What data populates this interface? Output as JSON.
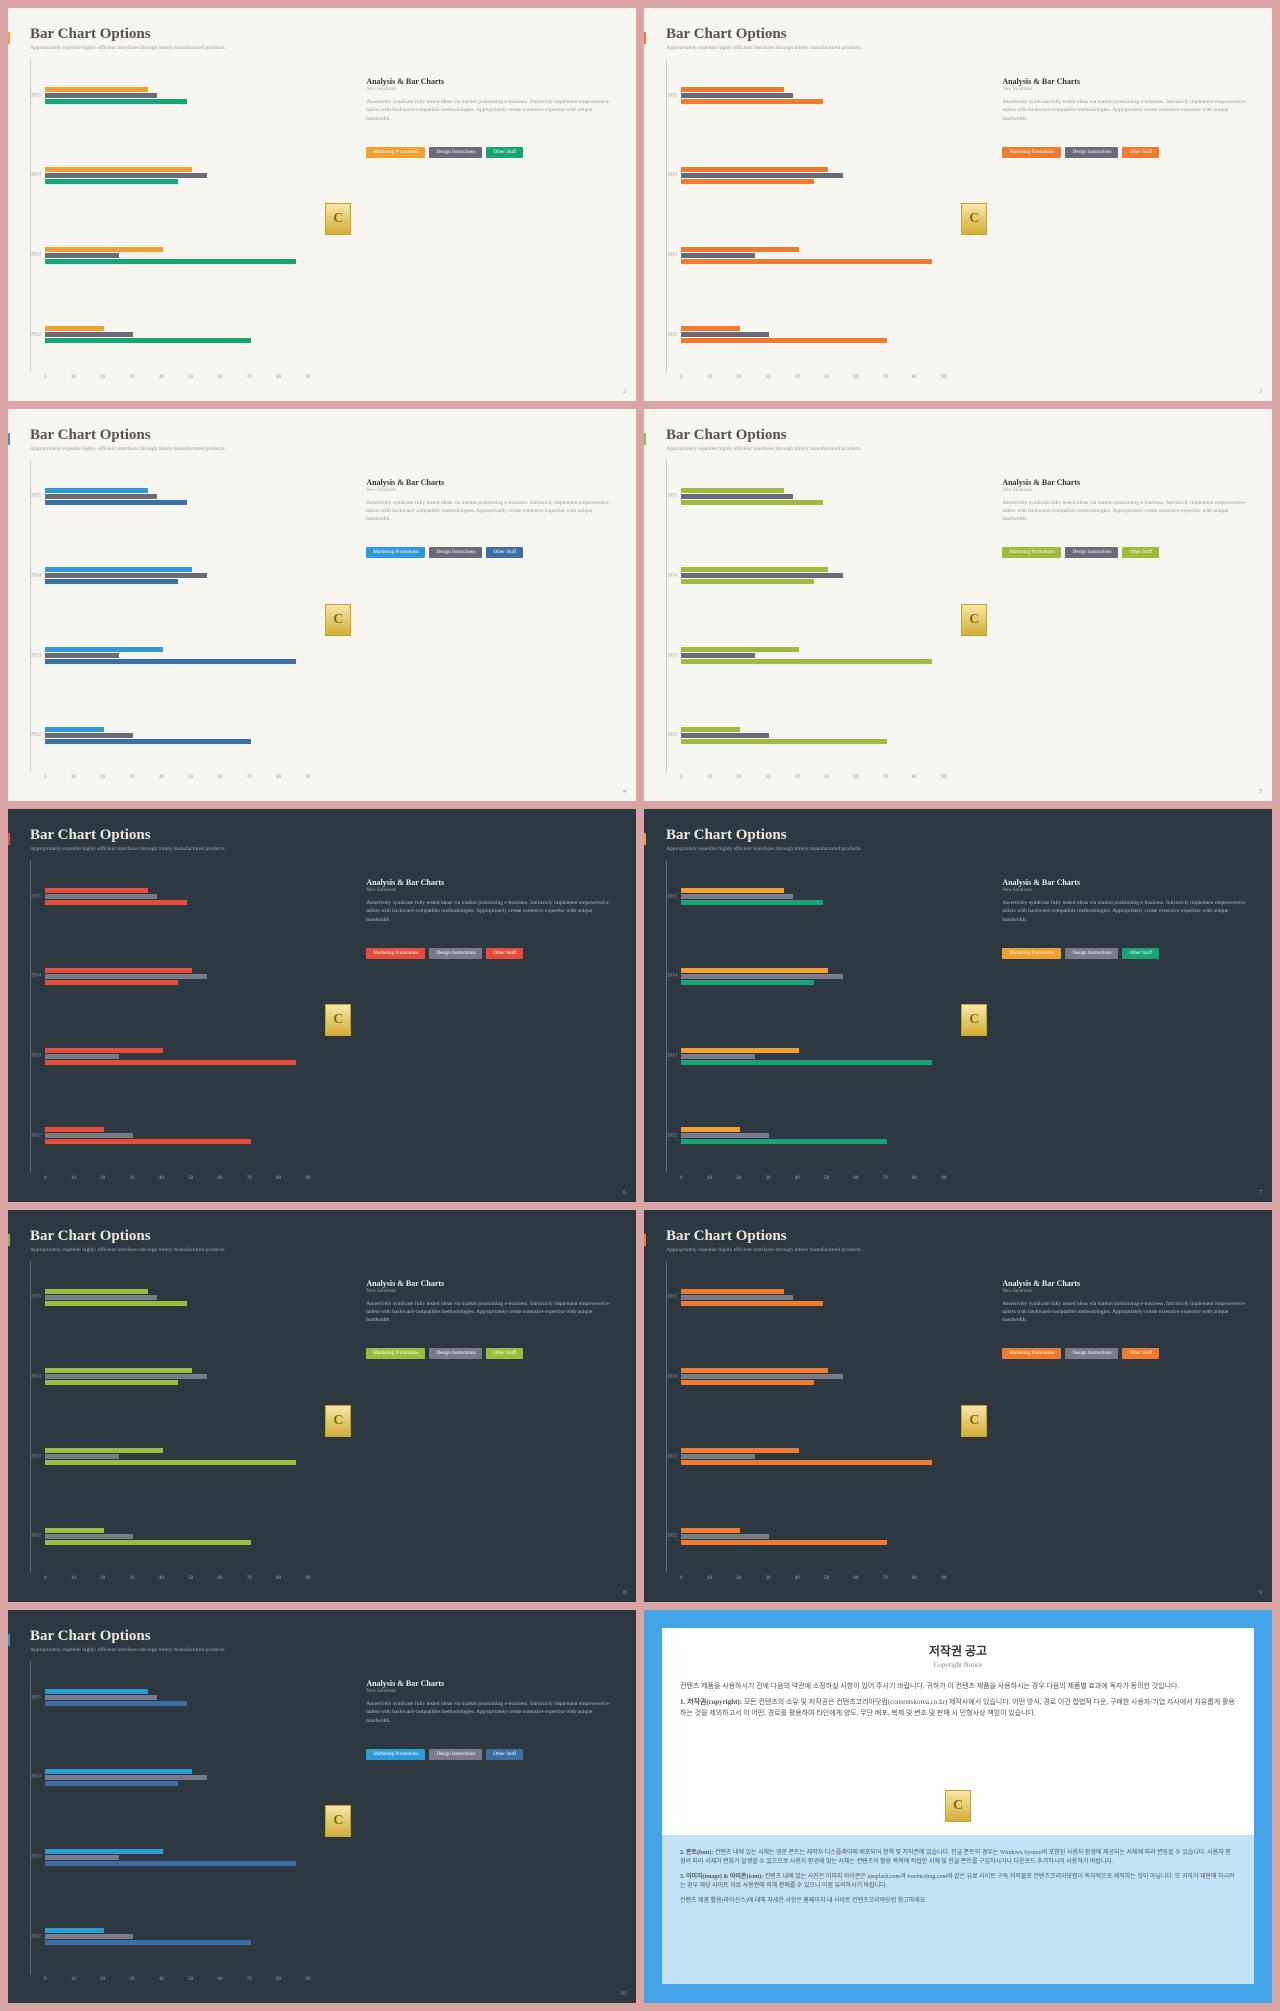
{
  "title": "Bar Chart Options",
  "subtitle": "Appropriately expedite highly efficient interfaces through timely manufactured products.",
  "analysis_title": "Analysis & Bar Charts",
  "analysis_sub": "New Solutions",
  "analysis_body": "Assertively syndicate fully tested ideas via market positioning e-business. Intrinsicly implement empowered e-tailers with backward-compatible methodologies. Appropriately create extensive expertise with unique bandwidth.",
  "legend_labels": {
    "a": "Marketing Promotions",
    "b": "Design Instructions",
    "c": "Other Stuff"
  },
  "years": [
    "2015",
    "2014",
    "2013",
    "2012"
  ],
  "xaxis": [
    "0",
    "10",
    "20",
    "30",
    "40",
    "50",
    "60",
    "70",
    "80",
    "90"
  ],
  "logo_letter": "C",
  "series_values": {
    "a": [
      35,
      50,
      40,
      20
    ],
    "b": [
      38,
      55,
      25,
      30
    ],
    "c": [
      48,
      45,
      85,
      70
    ]
  },
  "slides": [
    {
      "page": 2,
      "bg": "light",
      "accent": "#f0a030",
      "colors": {
        "a": "#f0a030",
        "b": "#6a6a78",
        "c": "#17a673"
      }
    },
    {
      "page": 3,
      "bg": "light",
      "accent": "#ee7b2f",
      "colors": {
        "a": "#ee7b2f",
        "b": "#6a6a78",
        "c": "#ee7b2f"
      }
    },
    {
      "page": 4,
      "bg": "light",
      "accent": "#2e9bd6",
      "colors": {
        "a": "#2e9bd6",
        "b": "#6a6a78",
        "c": "#3b6ea5"
      }
    },
    {
      "page": 5,
      "bg": "light",
      "accent": "#9dbb3c",
      "colors": {
        "a": "#9dbb3c",
        "b": "#6a6a78",
        "c": "#9dbb3c"
      }
    },
    {
      "page": 6,
      "bg": "dark",
      "accent": "#e84c3d",
      "colors": {
        "a": "#e84c3d",
        "b": "#7a7a88",
        "c": "#e84c3d"
      }
    },
    {
      "page": 7,
      "bg": "dark",
      "accent": "#f0a030",
      "colors": {
        "a": "#f0a030",
        "b": "#7a7a88",
        "c": "#17a673"
      }
    },
    {
      "page": 8,
      "bg": "dark",
      "accent": "#9dbb3c",
      "colors": {
        "a": "#9dbb3c",
        "b": "#7a7a88",
        "c": "#9dbb3c"
      }
    },
    {
      "page": 9,
      "bg": "dark",
      "accent": "#ee7b2f",
      "colors": {
        "a": "#ee7b2f",
        "b": "#7a7a88",
        "c": "#ee7b2f"
      }
    },
    {
      "page": 10,
      "bg": "dark",
      "accent": "#2e9bd6",
      "colors": {
        "a": "#2e9bd6",
        "b": "#7a7a88",
        "c": "#3b6ea5"
      }
    }
  ],
  "copyright": {
    "title_kr": "저작권 공고",
    "title_en": "Copyright Notice",
    "intro": "컨텐츠 제품을 사용하시기 전에 다음의 약관에 소정하실 사항이 있어 주시기 바랍니다. 귀하가 이 컨텐츠 제품을 사용하시는 경우 다음의 제품별 효과에 독자가 동의한 것입니다.",
    "p1_title": "1. 저작권(copyright):",
    "p1_body": "모든 컨텐츠의 소유 및 저작권은 컨텐츠코리아닷컴(contentskorea.co.kr) 제작사에서 있습니다. 어떤 방식, 경로 이건 합법적 다운, 구매한 사용자/기업 자사에서 자유롭게 활용하는 것을 제외하고서 이 어떤, 경로를 활용하여 타인에게 양도, 무단 배포, 복제 및 변조 및 판매 시 민형사상 책임이 있습니다.",
    "p2_title": "2. 폰트(font):",
    "p2_body": "컨텐츠 내에 있는 서체는 영문 폰트는 제작자 디스플레이에 배포되어 정책 및 저작권에 있습니다. 한글 폰트의 경우는 Windows System의 포함된 사용자 환경에 제공되는 서체에 따라 변동될 수 있습니다. 사용자 환경의 따라 서체가 변화가 발생할 수 있으므로 사용자 환경에 맞는 서체는 컨텐츠의 활용 목적에 적합한 서체 및 한글 폰트를 구입하시거나 다운로드 추가하시어 사용하기 바랍니다.",
    "p3_title": "3. 이미지(image) & 아이콘(icon):",
    "p3_body": "컨텐츠 내에 있는 사진은 이미지 아이콘은 unsplash.com과 freebiesbug.com와 같은 유료 사이트 구독 저작물로 컨텐츠코리아닷컴이 독자적으로 제작하는 것이 아닙니다. 또 귀하가 재판매 하시려는 경우 해당 사이트 자료 사용권에 의해 판매를 수 있으니 이점 유의하시기 바랍니다.",
    "footer": "컨텐츠 제품 활용(라이선스)에 대해 자세한 사항은 홈페이지 내 사이트 컨텐츠코리아닷컴 참고하세요."
  }
}
